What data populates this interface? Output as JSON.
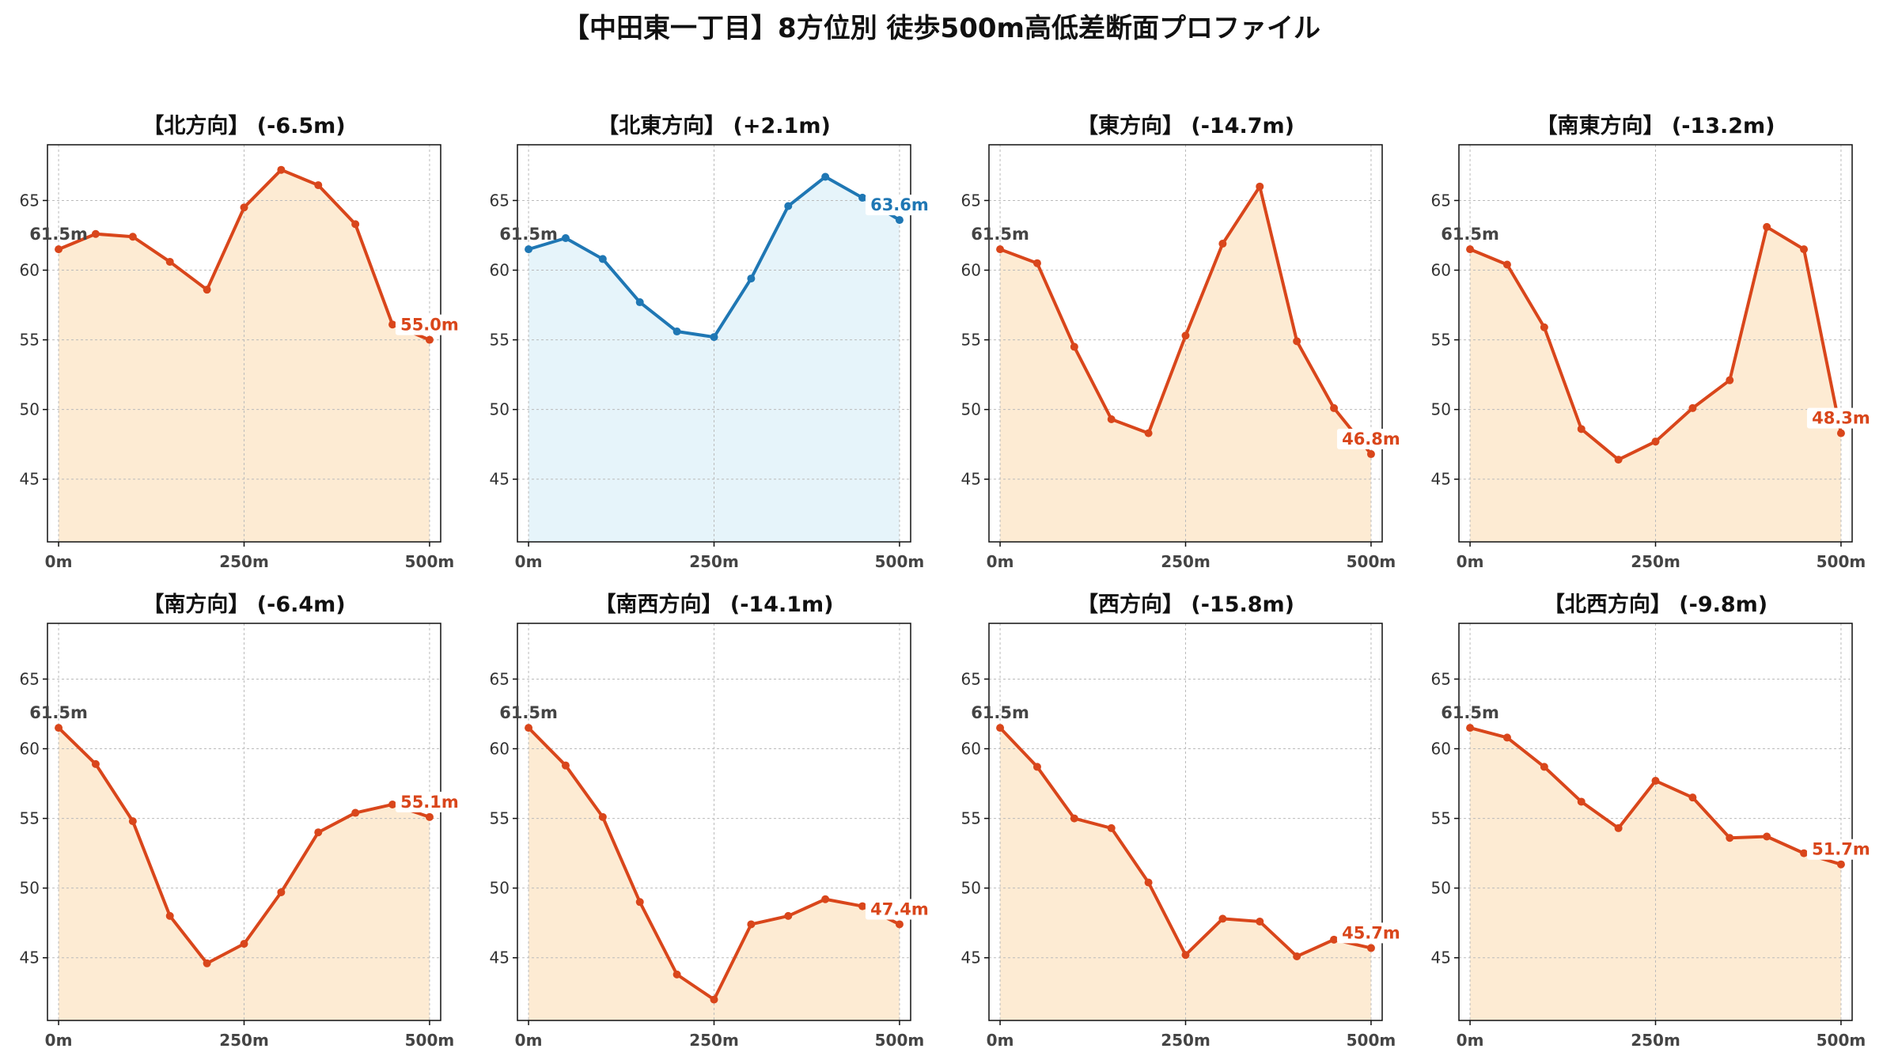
{
  "title": "【中田東一丁目】8方位別 徒歩500m高低差断面プロファイル",
  "colors": {
    "down": "#d9461b",
    "up": "#1f77b4",
    "down_fill": "#fdebd3",
    "up_fill": "#e6f4fa",
    "grid": "#bbbbbb",
    "start_label": "#444444"
  },
  "chart_data": [
    {
      "type": "area",
      "title": "【北方向】 (-6.5m)",
      "trend": "down",
      "x": [
        0,
        50,
        100,
        150,
        200,
        250,
        300,
        350,
        400,
        450,
        500
      ],
      "series": [
        {
          "values": [
            61.5,
            62.6,
            62.4,
            60.6,
            58.6,
            64.5,
            67.2,
            66.1,
            63.3,
            56.1,
            55.0
          ]
        }
      ],
      "start_label": "61.5m",
      "end_label": "55.0m",
      "xticks": [
        "0m",
        "250m",
        "500m"
      ],
      "yticks": [
        45,
        50,
        55,
        60,
        65
      ],
      "ylim": [
        40.5,
        69
      ],
      "xlim": [
        -15,
        515
      ],
      "grid": true
    },
    {
      "type": "area",
      "title": "【北東方向】 (+2.1m)",
      "trend": "up",
      "x": [
        0,
        50,
        100,
        150,
        200,
        250,
        300,
        350,
        400,
        450,
        500
      ],
      "series": [
        {
          "values": [
            61.5,
            62.3,
            60.8,
            57.7,
            55.6,
            55.2,
            59.4,
            64.6,
            66.7,
            65.2,
            63.6
          ]
        }
      ],
      "start_label": "61.5m",
      "end_label": "63.6m",
      "xticks": [
        "0m",
        "250m",
        "500m"
      ],
      "yticks": [
        45,
        50,
        55,
        60,
        65
      ],
      "ylim": [
        40.5,
        69
      ],
      "xlim": [
        -15,
        515
      ],
      "grid": true
    },
    {
      "type": "area",
      "title": "【東方向】 (-14.7m)",
      "trend": "down",
      "x": [
        0,
        50,
        100,
        150,
        200,
        250,
        300,
        350,
        400,
        450,
        500
      ],
      "series": [
        {
          "values": [
            61.5,
            60.5,
            54.5,
            49.3,
            48.3,
            55.3,
            61.9,
            66.0,
            54.9,
            50.1,
            46.8
          ]
        }
      ],
      "start_label": "61.5m",
      "end_label": "46.8m",
      "xticks": [
        "0m",
        "250m",
        "500m"
      ],
      "yticks": [
        45,
        50,
        55,
        60,
        65
      ],
      "ylim": [
        40.5,
        69
      ],
      "xlim": [
        -15,
        515
      ],
      "grid": true
    },
    {
      "type": "area",
      "title": "【南東方向】 (-13.2m)",
      "trend": "down",
      "x": [
        0,
        50,
        100,
        150,
        200,
        250,
        300,
        350,
        400,
        450,
        500
      ],
      "series": [
        {
          "values": [
            61.5,
            60.4,
            55.9,
            48.6,
            46.4,
            47.7,
            50.1,
            52.1,
            63.1,
            61.5,
            48.3
          ]
        }
      ],
      "start_label": "61.5m",
      "end_label": "48.3m",
      "xticks": [
        "0m",
        "250m",
        "500m"
      ],
      "yticks": [
        45,
        50,
        55,
        60,
        65
      ],
      "ylim": [
        40.5,
        69
      ],
      "xlim": [
        -15,
        515
      ],
      "grid": true
    },
    {
      "type": "area",
      "title": "【南方向】 (-6.4m)",
      "trend": "down",
      "x": [
        0,
        50,
        100,
        150,
        200,
        250,
        300,
        350,
        400,
        450,
        500
      ],
      "series": [
        {
          "values": [
            61.5,
            58.9,
            54.8,
            48.0,
            44.6,
            46.0,
            49.7,
            54.0,
            55.4,
            56.0,
            55.1
          ]
        }
      ],
      "start_label": "61.5m",
      "end_label": "55.1m",
      "xticks": [
        "0m",
        "250m",
        "500m"
      ],
      "yticks": [
        45,
        50,
        55,
        60,
        65
      ],
      "ylim": [
        40.5,
        69
      ],
      "xlim": [
        -15,
        515
      ],
      "grid": true
    },
    {
      "type": "area",
      "title": "【南西方向】 (-14.1m)",
      "trend": "down",
      "x": [
        0,
        50,
        100,
        150,
        200,
        250,
        300,
        350,
        400,
        450,
        500
      ],
      "series": [
        {
          "values": [
            61.5,
            58.8,
            55.1,
            49.0,
            43.8,
            42.0,
            47.4,
            48.0,
            49.2,
            48.7,
            47.4
          ]
        }
      ],
      "start_label": "61.5m",
      "end_label": "47.4m",
      "xticks": [
        "0m",
        "250m",
        "500m"
      ],
      "yticks": [
        45,
        50,
        55,
        60,
        65
      ],
      "ylim": [
        40.5,
        69
      ],
      "xlim": [
        -15,
        515
      ],
      "grid": true
    },
    {
      "type": "area",
      "title": "【西方向】 (-15.8m)",
      "trend": "down",
      "x": [
        0,
        50,
        100,
        150,
        200,
        250,
        300,
        350,
        400,
        450,
        500
      ],
      "series": [
        {
          "values": [
            61.5,
            58.7,
            55.0,
            54.3,
            50.4,
            45.2,
            47.8,
            47.6,
            45.1,
            46.3,
            45.7
          ]
        }
      ],
      "start_label": "61.5m",
      "end_label": "45.7m",
      "xticks": [
        "0m",
        "250m",
        "500m"
      ],
      "yticks": [
        45,
        50,
        55,
        60,
        65
      ],
      "ylim": [
        40.5,
        69
      ],
      "xlim": [
        -15,
        515
      ],
      "grid": true
    },
    {
      "type": "area",
      "title": "【北西方向】 (-9.8m)",
      "trend": "down",
      "x": [
        0,
        50,
        100,
        150,
        200,
        250,
        300,
        350,
        400,
        450,
        500
      ],
      "series": [
        {
          "values": [
            61.5,
            60.8,
            58.7,
            56.2,
            54.3,
            57.7,
            56.5,
            53.6,
            53.7,
            52.5,
            51.7
          ]
        }
      ],
      "start_label": "61.5m",
      "end_label": "51.7m",
      "xticks": [
        "0m",
        "250m",
        "500m"
      ],
      "yticks": [
        45,
        50,
        55,
        60,
        65
      ],
      "ylim": [
        40.5,
        69
      ],
      "xlim": [
        -15,
        515
      ],
      "grid": true
    }
  ]
}
